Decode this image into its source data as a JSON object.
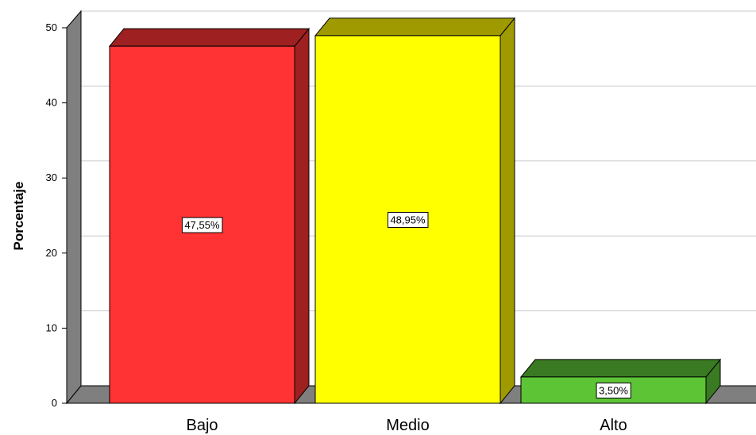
{
  "chart_data": {
    "type": "bar",
    "three_d": true,
    "categories": [
      "Bajo",
      "Medio",
      "Alto"
    ],
    "values": [
      47.55,
      48.95,
      3.5
    ],
    "data_labels": [
      "47,55%",
      "48,95%",
      "3,50%"
    ],
    "colors": [
      {
        "front": "#ff3333",
        "top": "#9e2020",
        "side": "#9e2020"
      },
      {
        "front": "#ffff00",
        "top": "#9e9a00",
        "side": "#9e9a00"
      },
      {
        "front": "#5cc435",
        "top": "#3a7a22",
        "side": "#3a7a22"
      }
    ],
    "title": "",
    "xlabel": "",
    "ylabel": "Porcentaje",
    "ylim": [
      0,
      50
    ],
    "yticks": [
      0,
      10,
      20,
      30,
      40,
      50
    ],
    "grid": true,
    "legend": "none"
  }
}
